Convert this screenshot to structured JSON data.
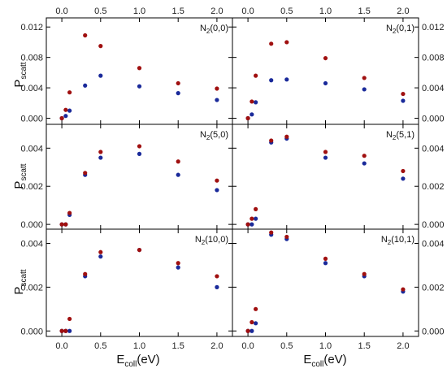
{
  "figure": {
    "ylabel_main": "P",
    "ylabel_sub": "scatt",
    "xlabel_main": "E",
    "xlabel_sub": "coll",
    "xlabel_unit": "(eV)",
    "colors": {
      "series_a": "#a01010",
      "series_b": "#1a2a9a"
    }
  },
  "chart_data": [
    {
      "type": "scatter",
      "label_main": "N",
      "label_sub": "2",
      "label_tail": "(0,0)",
      "xlim": [
        -0.2,
        2.2
      ],
      "ylim": [
        -0.0008,
        0.0132
      ],
      "yticks": [
        "0.000",
        "0.004",
        "0.008",
        "0.012"
      ],
      "ytick_values": [
        0,
        0.004,
        0.008,
        0.012
      ],
      "xticks": [
        "0.0",
        "0.5",
        "1.0",
        "1.5",
        "2.0"
      ],
      "xtick_values": [
        0,
        0.5,
        1,
        1.5,
        2
      ],
      "series": [
        {
          "color": "#a01010",
          "x": [
            0.0,
            0.05,
            0.1,
            0.3,
            0.5,
            1.0,
            1.5,
            2.0
          ],
          "y": [
            0.0,
            0.0011,
            0.0034,
            0.0109,
            0.0095,
            0.0066,
            0.0046,
            0.0039
          ]
        },
        {
          "color": "#1a2a9a",
          "x": [
            0.0,
            0.05,
            0.1,
            0.3,
            0.5,
            1.0,
            1.5,
            2.0
          ],
          "y": [
            0.0,
            0.0003,
            0.001,
            0.0043,
            0.0056,
            0.0042,
            0.0033,
            0.0024
          ]
        }
      ]
    },
    {
      "type": "scatter",
      "label_main": "N",
      "label_sub": "2",
      "label_tail": "(0,1)",
      "xlim": [
        -0.2,
        2.2
      ],
      "ylim": [
        -0.0008,
        0.0132
      ],
      "yticks": [
        "0.000",
        "0.004",
        "0.008",
        "0.012"
      ],
      "ytick_values": [
        0,
        0.004,
        0.008,
        0.012
      ],
      "xticks": [
        "0.0",
        "0.5",
        "1.0",
        "1.5",
        "2.0"
      ],
      "xtick_values": [
        0,
        0.5,
        1,
        1.5,
        2
      ],
      "series": [
        {
          "color": "#a01010",
          "x": [
            0.0,
            0.05,
            0.1,
            0.3,
            0.5,
            1.0,
            1.5,
            2.0
          ],
          "y": [
            0.0,
            0.0022,
            0.0056,
            0.0098,
            0.01,
            0.0079,
            0.0053,
            0.0032
          ]
        },
        {
          "color": "#1a2a9a",
          "x": [
            0.0,
            0.05,
            0.1,
            0.3,
            0.5,
            1.0,
            1.5,
            2.0
          ],
          "y": [
            0.0,
            0.0005,
            0.0021,
            0.005,
            0.0051,
            0.0046,
            0.0038,
            0.0023
          ]
        }
      ]
    },
    {
      "type": "scatter",
      "label_main": "N",
      "label_sub": "2",
      "label_tail": "(5,0)",
      "xlim": [
        -0.2,
        2.2
      ],
      "ylim": [
        -0.00025,
        0.00525
      ],
      "yticks": [
        "0.000",
        "0.002",
        "0.004"
      ],
      "ytick_values": [
        0,
        0.002,
        0.004
      ],
      "xticks": [
        "0.0",
        "0.5",
        "1.0",
        "1.5",
        "2.0"
      ],
      "xtick_values": [
        0,
        0.5,
        1,
        1.5,
        2
      ],
      "series": [
        {
          "color": "#a01010",
          "x": [
            0.0,
            0.05,
            0.1,
            0.3,
            0.5,
            1.0,
            1.5,
            2.0
          ],
          "y": [
            0.0,
            0.0,
            0.0006,
            0.0027,
            0.0038,
            0.0041,
            0.0033,
            0.0023
          ]
        },
        {
          "color": "#1a2a9a",
          "x": [
            0.0,
            0.05,
            0.1,
            0.3,
            0.5,
            1.0,
            1.5,
            2.0
          ],
          "y": [
            0.0,
            0.0,
            0.0005,
            0.0026,
            0.0035,
            0.0037,
            0.0026,
            0.0018
          ]
        }
      ]
    },
    {
      "type": "scatter",
      "label_main": "N",
      "label_sub": "2",
      "label_tail": "(5,1)",
      "xlim": [
        -0.2,
        2.2
      ],
      "ylim": [
        -0.00025,
        0.00525
      ],
      "yticks": [
        "0.000",
        "0.002",
        "0.004"
      ],
      "ytick_values": [
        0,
        0.002,
        0.004
      ],
      "xticks": [
        "0.0",
        "0.5",
        "1.0",
        "1.5",
        "2.0"
      ],
      "xtick_values": [
        0,
        0.5,
        1,
        1.5,
        2
      ],
      "series": [
        {
          "color": "#a01010",
          "x": [
            0.0,
            0.05,
            0.1,
            0.3,
            0.5,
            1.0,
            1.5,
            2.0
          ],
          "y": [
            0.0,
            0.0003,
            0.0008,
            0.0044,
            0.0046,
            0.0038,
            0.0036,
            0.0028
          ]
        },
        {
          "color": "#1a2a9a",
          "x": [
            0.0,
            0.05,
            0.1,
            0.3,
            0.5,
            1.0,
            1.5,
            2.0
          ],
          "y": [
            0.0,
            0.0,
            0.0003,
            0.0043,
            0.0045,
            0.0035,
            0.0032,
            0.0024
          ]
        }
      ]
    },
    {
      "type": "scatter",
      "label_main": "N",
      "label_sub": "2",
      "label_tail": "(10,0)",
      "xlim": [
        -0.2,
        2.2
      ],
      "ylim": [
        -0.00025,
        0.00465
      ],
      "yticks": [
        "0.000",
        "0.002",
        "0.004"
      ],
      "ytick_values": [
        0,
        0.002,
        0.004
      ],
      "xticks": [
        "0.0",
        "0.5",
        "1.0",
        "1.5",
        "2.0"
      ],
      "xtick_values": [
        0,
        0.5,
        1,
        1.5,
        2
      ],
      "series": [
        {
          "color": "#a01010",
          "x": [
            0.0,
            0.05,
            0.1,
            0.3,
            0.5,
            1.0,
            1.5,
            2.0
          ],
          "y": [
            0.0,
            0.0,
            0.00055,
            0.0026,
            0.0036,
            0.0037,
            0.0031,
            0.0025
          ]
        },
        {
          "color": "#1a2a9a",
          "x": [
            0.0,
            0.05,
            0.1,
            0.3,
            0.5,
            1.0,
            1.5,
            2.0
          ],
          "y": [
            0.0,
            0.0,
            0.0,
            0.0025,
            0.0034,
            0.0037,
            0.0029,
            0.002
          ]
        }
      ]
    },
    {
      "type": "scatter",
      "label_main": "N",
      "label_sub": "2",
      "label_tail": "(10,1)",
      "xlim": [
        -0.2,
        2.2
      ],
      "ylim": [
        -0.00025,
        0.00465
      ],
      "yticks": [
        "0.000",
        "0.002",
        "0.004"
      ],
      "ytick_values": [
        0,
        0.002,
        0.004
      ],
      "xticks": [
        "0.0",
        "0.5",
        "1.0",
        "1.5",
        "2.0"
      ],
      "xtick_values": [
        0,
        0.5,
        1,
        1.5,
        2
      ],
      "series": [
        {
          "color": "#a01010",
          "x": [
            0.0,
            0.05,
            0.1,
            0.3,
            0.5,
            1.0,
            1.5,
            2.0
          ],
          "y": [
            0.0,
            0.0004,
            0.001,
            0.0045,
            0.0043,
            0.0033,
            0.0026,
            0.0019
          ]
        },
        {
          "color": "#1a2a9a",
          "x": [
            0.0,
            0.05,
            0.1,
            0.3,
            0.5,
            1.0,
            1.5,
            2.0
          ],
          "y": [
            0.0,
            0.0,
            0.00035,
            0.0044,
            0.0042,
            0.0031,
            0.0025,
            0.0018
          ]
        }
      ]
    }
  ]
}
